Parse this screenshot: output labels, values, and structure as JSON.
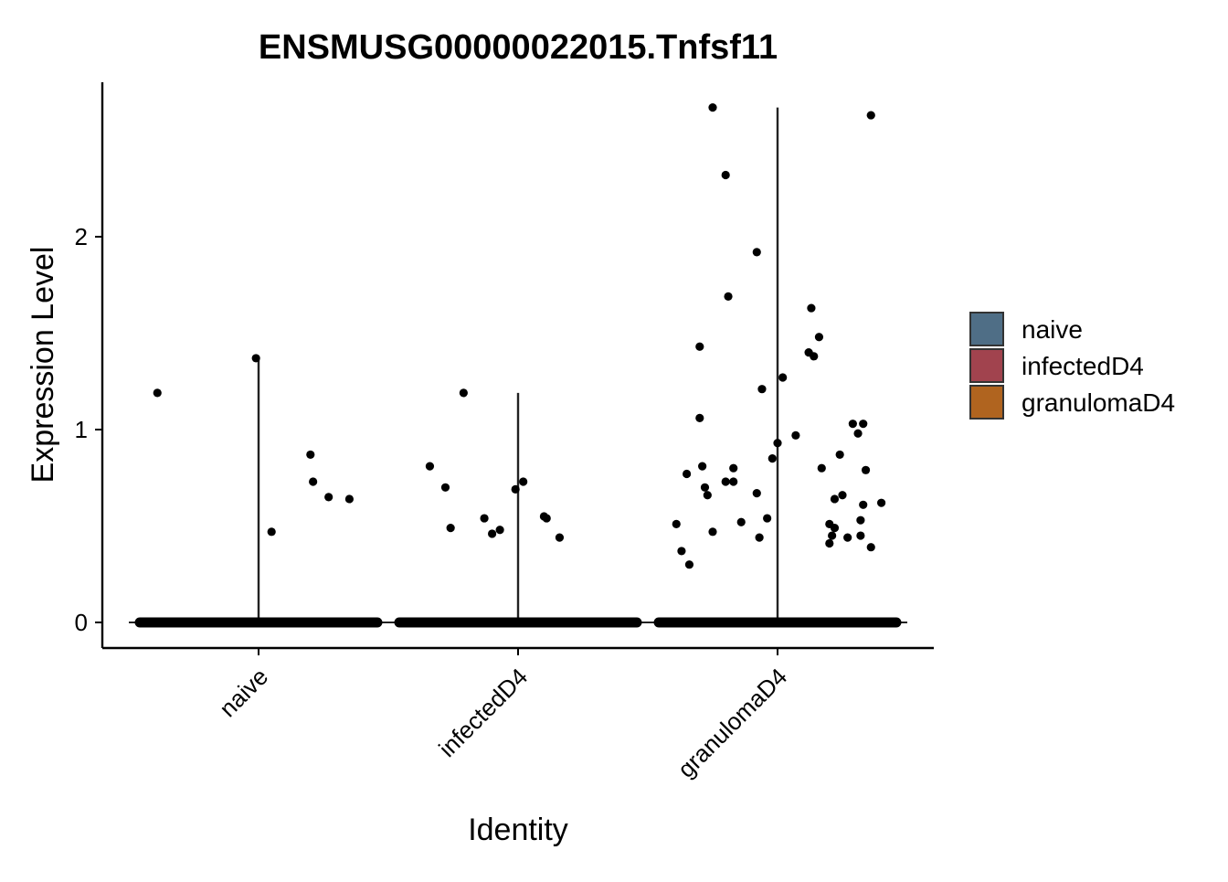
{
  "chart_data": {
    "type": "violin",
    "title": "ENSMUSG00000022015.Tnfsf11",
    "xlabel": "Identity",
    "ylabel": "Expression Level",
    "ylim": [
      -0.13,
      2.78
    ],
    "yticks": [
      0,
      1,
      2
    ],
    "categories": [
      "naive",
      "infectedD4",
      "granulomaD4"
    ],
    "grid": false,
    "legend_position": "right",
    "legend": [
      {
        "name": "naive",
        "color": "#4f6e86"
      },
      {
        "name": "infectedD4",
        "color": "#a1434e"
      },
      {
        "name": "granulomaD4",
        "color": "#b0641f"
      }
    ],
    "series": [
      {
        "name": "naive",
        "max": 1.37,
        "points": [
          [
            -0.39,
            1.19
          ],
          [
            -0.01,
            1.37
          ],
          [
            0.05,
            0.47
          ],
          [
            0.2,
            0.87
          ],
          [
            0.21,
            0.73
          ],
          [
            0.27,
            0.65
          ],
          [
            0.35,
            0.64
          ]
        ]
      },
      {
        "name": "infectedD4",
        "max": 1.19,
        "points": [
          [
            -0.34,
            0.81
          ],
          [
            -0.28,
            0.7
          ],
          [
            -0.26,
            0.49
          ],
          [
            -0.21,
            1.19
          ],
          [
            -0.13,
            0.54
          ],
          [
            -0.1,
            0.46
          ],
          [
            -0.07,
            0.48
          ],
          [
            -0.01,
            0.69
          ],
          [
            0.02,
            0.73
          ],
          [
            0.1,
            0.55
          ],
          [
            0.11,
            0.54
          ],
          [
            0.16,
            0.44
          ]
        ]
      },
      {
        "name": "granulomaD4",
        "max": 2.67,
        "points": [
          [
            -0.39,
            0.51
          ],
          [
            -0.37,
            0.37
          ],
          [
            -0.34,
            0.3
          ],
          [
            -0.35,
            0.77
          ],
          [
            -0.3,
            1.43
          ],
          [
            -0.3,
            1.06
          ],
          [
            -0.29,
            0.81
          ],
          [
            -0.28,
            0.7
          ],
          [
            -0.27,
            0.66
          ],
          [
            -0.25,
            0.47
          ],
          [
            -0.25,
            2.67
          ],
          [
            -0.2,
            2.32
          ],
          [
            -0.2,
            0.73
          ],
          [
            -0.19,
            1.69
          ],
          [
            -0.17,
            0.8
          ],
          [
            -0.17,
            0.73
          ],
          [
            -0.14,
            0.52
          ],
          [
            -0.08,
            1.92
          ],
          [
            -0.08,
            0.67
          ],
          [
            -0.07,
            0.44
          ],
          [
            -0.06,
            1.21
          ],
          [
            -0.04,
            0.54
          ],
          [
            -0.02,
            0.85
          ],
          [
            0.0,
            0.93
          ],
          [
            0.02,
            1.27
          ],
          [
            0.07,
            0.97
          ],
          [
            0.12,
            1.4
          ],
          [
            0.13,
            1.63
          ],
          [
            0.14,
            1.38
          ],
          [
            0.16,
            1.48
          ],
          [
            0.17,
            0.8
          ],
          [
            0.2,
            0.51
          ],
          [
            0.2,
            0.41
          ],
          [
            0.21,
            0.45
          ],
          [
            0.22,
            0.49
          ],
          [
            0.22,
            0.64
          ],
          [
            0.24,
            0.87
          ],
          [
            0.25,
            0.66
          ],
          [
            0.27,
            0.44
          ],
          [
            0.29,
            1.03
          ],
          [
            0.31,
            0.98
          ],
          [
            0.32,
            0.45
          ],
          [
            0.32,
            0.53
          ],
          [
            0.33,
            1.03
          ],
          [
            0.33,
            0.61
          ],
          [
            0.34,
            0.79
          ],
          [
            0.36,
            0.39
          ],
          [
            0.36,
            2.63
          ],
          [
            0.4,
            0.62
          ]
        ]
      }
    ]
  }
}
